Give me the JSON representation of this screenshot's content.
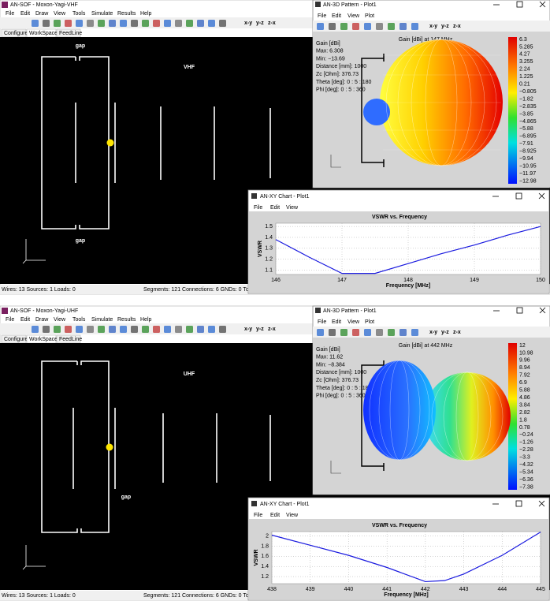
{
  "panels": [
    {
      "main_window": {
        "title": "AN-SOF - Moxon-Yagi-VHF",
        "menu": [
          "File",
          "Edit",
          "Draw",
          "View",
          "Tools",
          "Simulate",
          "Results",
          "Help"
        ],
        "toolbar_labels": [
          "x-y",
          "y-z",
          "z-x"
        ],
        "tabs": [
          "Configure",
          "WorkSpace",
          "FeedLine"
        ],
        "labels": [
          "gap",
          "gap",
          "VHF"
        ],
        "axes_labels": [
          "z",
          "y",
          "x"
        ],
        "status_left": "Wires: 13 Sources: 1 Loads: 0",
        "status_right": "Segments: 121 Connections: 6 GNDs: 0 Total: 127"
      },
      "pattern_window": {
        "title": "AN-3D Pattern - Plot1",
        "menu": [
          "File",
          "Edit",
          "View",
          "Plot"
        ],
        "toolbar_labels": [
          "x-y",
          "y-z",
          "z-x"
        ],
        "header": "Gain [dBi] at 147 MHz",
        "info": [
          "Gain [dBi]",
          "Max: 6.308",
          "Min: −13.69",
          "Distance [mm]: 1000",
          "Zc [Ohm]: 376.73",
          "Theta [deg]: 0 : 5 : 180",
          "Phi [deg]: 0 : 5 : 360"
        ],
        "colorbar": [
          "6.3",
          "5.285",
          "4.27",
          "3.255",
          "2.24",
          "1.225",
          "0.21",
          "−0.805",
          "−1.82",
          "−2.835",
          "−3.85",
          "−4.865",
          "−5.88",
          "−6.895",
          "−7.91",
          "−8.925",
          "−9.94",
          "−10.95",
          "−11.97",
          "−12.98"
        ]
      },
      "chart_window": {
        "title": "AN-XY Chart - Plot1",
        "menu": [
          "File",
          "Edit",
          "View"
        ],
        "chart": {
          "type": "line",
          "title": "VSWR vs. Frequency",
          "x_label": "Frequency [MHz]",
          "y_label": "VSWR",
          "x": [
            146,
            146.5,
            147,
            147.5,
            148,
            148.5,
            149,
            149.5,
            150
          ],
          "values": [
            1.38,
            1.22,
            1.07,
            1.07,
            1.16,
            1.25,
            1.33,
            1.42,
            1.5
          ],
          "color": "#1a1adf",
          "xlim": [
            146,
            150
          ],
          "ylim": [
            1.06,
            1.53
          ],
          "xticks": [
            146,
            147,
            148,
            149,
            150
          ],
          "yticks": [
            1.1,
            1.2,
            1.3,
            1.4,
            1.5
          ],
          "grid": true
        }
      }
    },
    {
      "main_window": {
        "title": "AN-SOF - Moxon-Yagi-UHF",
        "menu": [
          "File",
          "Edit",
          "Draw",
          "View",
          "Tools",
          "Simulate",
          "Results",
          "Help"
        ],
        "toolbar_labels": [
          "x-y",
          "y-z",
          "z-x"
        ],
        "tabs": [
          "Configure",
          "WorkSpace",
          "FeedLine"
        ],
        "labels": [
          "gap",
          "UHF"
        ],
        "axes_labels": [
          "z",
          "y",
          "x"
        ],
        "status_left": "Wires: 13 Sources: 1 Loads: 0",
        "status_right": "Segments: 121 Connections: 6 GNDs: 0 Total: 127"
      },
      "pattern_window": {
        "title": "AN-3D Pattern - Plot1",
        "menu": [
          "File",
          "Edit",
          "View",
          "Plot"
        ],
        "toolbar_labels": [
          "x-y",
          "y-z",
          "z-x"
        ],
        "header": "Gain [dBi] at 442 MHz",
        "info": [
          "Gain [dBi]",
          "Max: 11.62",
          "Min: −8.384",
          "Distance [mm]: 1000",
          "Zc [Ohm]: 376.73",
          "Theta [deg]: 0 : 5 : 180",
          "Phi [deg]: 0 : 5 : 360"
        ],
        "colorbar": [
          "12",
          "10.98",
          "9.96",
          "8.94",
          "7.92",
          "6.9",
          "5.88",
          "4.86",
          "3.84",
          "2.82",
          "1.8",
          "0.78",
          "−0.24",
          "−1.26",
          "−2.28",
          "−3.3",
          "−4.32",
          "−5.34",
          "−6.36",
          "−7.38"
        ]
      },
      "chart_window": {
        "title": "AN-XY Chart - Plot1",
        "menu": [
          "File",
          "Edit",
          "View"
        ],
        "chart": {
          "type": "line",
          "title": "VSWR vs. Frequency",
          "x_label": "Frequency [MHz]",
          "y_label": "VSWR",
          "x": [
            438,
            439,
            440,
            441,
            442,
            442.5,
            443,
            444,
            445
          ],
          "values": [
            2.02,
            1.82,
            1.62,
            1.38,
            1.1,
            1.12,
            1.25,
            1.62,
            2.08
          ],
          "color": "#1a1adf",
          "xlim": [
            438,
            445
          ],
          "ylim": [
            1.06,
            2.09
          ],
          "xticks": [
            438,
            439,
            440,
            441,
            442,
            443,
            444,
            445
          ],
          "yticks": [
            1.2,
            1.4,
            1.6,
            1.8,
            2
          ],
          "grid": true
        }
      }
    }
  ]
}
